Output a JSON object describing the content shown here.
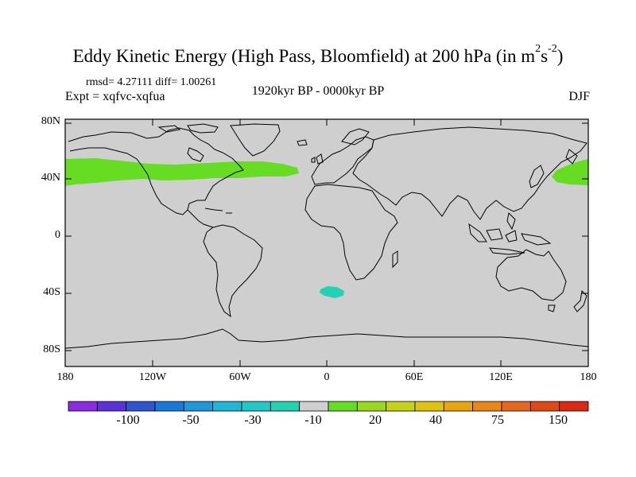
{
  "title": {
    "main": "Eddy Kinetic Energy (High Pass, Bloomfield) at 200 hPa (in m",
    "sup1": "2",
    "unit_s": "s",
    "sup2": "-2",
    "close": ")"
  },
  "stats": "rmsd= 4.27111 diff= 1.00261",
  "experiment": "Expt = xqfvc-xqfua",
  "period": "1920kyr BP - 0000kyr BP",
  "season": "DJF",
  "lat_labels": [
    "80N",
    "40N",
    "0",
    "40S",
    "80S"
  ],
  "lon_labels": [
    "180",
    "120W",
    "60W",
    "0",
    "60E",
    "120E",
    "180"
  ],
  "colorbar": {
    "colors": [
      "#8a2be2",
      "#5a32d8",
      "#2f55d0",
      "#1c78d8",
      "#1f98d8",
      "#20b6d4",
      "#20c8c8",
      "#22d2b2",
      "#cfcfcf",
      "#66dd22",
      "#99d81c",
      "#c4d414",
      "#e0c40c",
      "#e8a60c",
      "#e88818",
      "#e46820",
      "#e04818",
      "#dc2814"
    ],
    "labels": [
      "-100",
      "-50",
      "-30",
      "-10",
      "20",
      "40",
      "75",
      "150"
    ]
  },
  "map": {
    "ocean_color": "#cfcfcf",
    "coast_color": "#000000",
    "positive_fill": "#66dd22",
    "negative_fill": "#22d2b2"
  }
}
